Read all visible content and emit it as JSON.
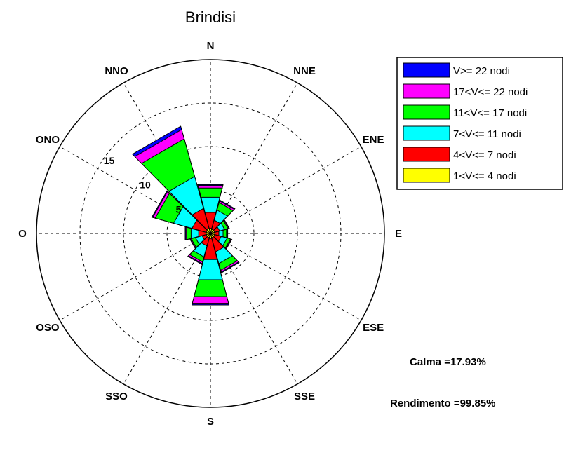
{
  "chart_data": {
    "type": "wind-rose",
    "title": "Brindisi",
    "directions": [
      "N",
      "NNE",
      "ENE",
      "E",
      "ESE",
      "SSE",
      "S",
      "SSO",
      "OSO",
      "O",
      "ONO",
      "NNO"
    ],
    "ring_labels": [
      "5",
      "10",
      "15"
    ],
    "rlim": [
      0,
      20
    ],
    "grid": true,
    "legend_position": "right-top",
    "series": [
      {
        "name": "1<V<= 4  nodi",
        "color": "#ffff00",
        "values": [
          0.6,
          0.5,
          0.5,
          0.5,
          0.5,
          0.5,
          0.6,
          0.5,
          0.5,
          0.5,
          0.5,
          0.6
        ]
      },
      {
        "name": "4<V<= 7  nodi",
        "color": "#ff0000",
        "values": [
          2.5,
          1.6,
          1.1,
          1.0,
          1.3,
          2.2,
          3.1,
          1.5,
          1.0,
          1.4,
          2.2,
          3.0
        ]
      },
      {
        "name": "7<V<= 11  nodi",
        "color": "#00ffff",
        "values": [
          4.3,
          2.8,
          1.7,
          1.5,
          2.0,
          3.6,
          5.5,
          2.8,
          1.8,
          2.3,
          4.4,
          6.8
        ]
      },
      {
        "name": "11<V<= 17  nodi",
        "color": "#00ff00",
        "values": [
          5.4,
          3.7,
          2.1,
          1.9,
          2.4,
          4.4,
          7.5,
          3.4,
          2.3,
          2.8,
          6.6,
          11.3
        ]
      },
      {
        "name": "17<V<= 22  nodi",
        "color": "#ff00ff",
        "values": [
          5.7,
          3.9,
          2.2,
          2.0,
          2.5,
          4.6,
          8.3,
          3.6,
          2.4,
          2.9,
          6.9,
          12.4
        ]
      },
      {
        "name": "V>= 22  nodi",
        "color": "#0000ff",
        "values": [
          5.8,
          4.0,
          2.25,
          2.05,
          2.55,
          4.7,
          8.5,
          3.7,
          2.45,
          3.0,
          7.0,
          12.8
        ]
      }
    ]
  },
  "stats": {
    "calma": "Calma =17.93%",
    "rendimento": "Rendimento =99.85%"
  }
}
